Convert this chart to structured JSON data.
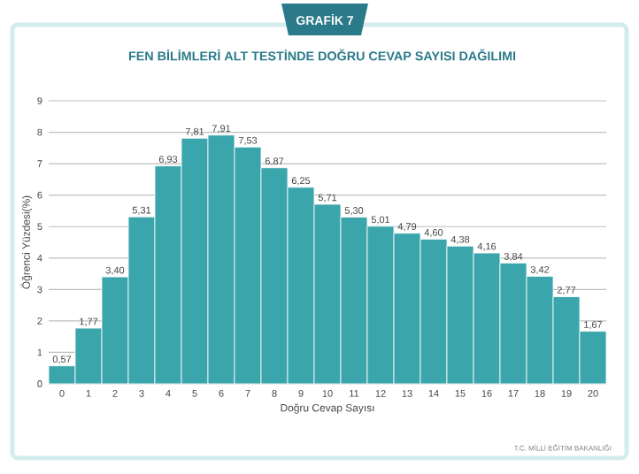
{
  "chart_data": {
    "type": "bar",
    "title": "GRAFİK 7",
    "subtitle": "FEN BİLİMLERİ ALT TESTİNDE DOĞRU CEVAP SAYISI DAĞILIMI",
    "xlabel": "Doğru Cevap Sayısı",
    "ylabel": "Öğrenci Yüzdesi(%)",
    "annotations": [
      "T.C. MİLLİ EĞİTİM BAKANLIĞI"
    ],
    "categories": [
      "0",
      "1",
      "2",
      "3",
      "4",
      "5",
      "6",
      "7",
      "8",
      "9",
      "10",
      "11",
      "12",
      "13",
      "14",
      "15",
      "16",
      "17",
      "18",
      "19",
      "20"
    ],
    "values": [
      0.57,
      1.77,
      3.4,
      5.31,
      6.93,
      7.81,
      7.91,
      7.53,
      6.87,
      6.25,
      5.71,
      5.3,
      5.01,
      4.79,
      4.6,
      4.38,
      4.16,
      3.84,
      3.42,
      2.77,
      1.67
    ],
    "value_labels": [
      "0,57",
      "1,77",
      "3,40",
      "5,31",
      "6,93",
      "7,81",
      "7,91",
      "7,53",
      "6,87",
      "6,25",
      "5,71",
      "5,30",
      "5,01",
      "4,79",
      "4,60",
      "4,38",
      "4,16",
      "3,84",
      "3,42",
      "2,77",
      "1,67"
    ],
    "color": "#3aa6ab",
    "ylim": [
      0,
      9
    ],
    "yticks": [
      0,
      1,
      2,
      3,
      4,
      5,
      6,
      7,
      8,
      9
    ],
    "grid": "y"
  }
}
